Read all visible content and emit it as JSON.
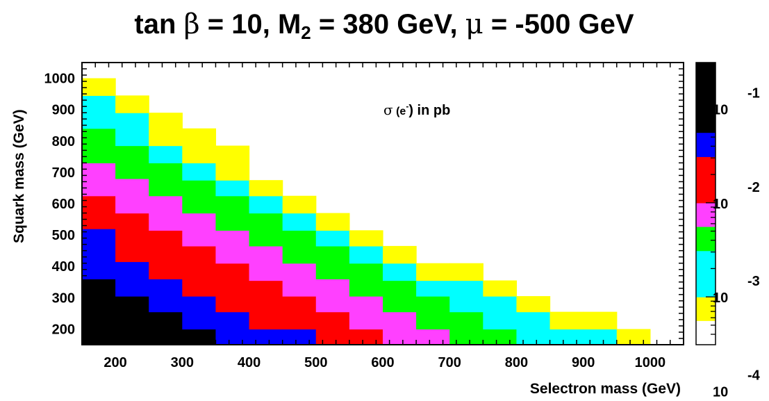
{
  "chart_data": {
    "type": "heatmap",
    "title": {
      "prefix": "tan ",
      "beta": "β",
      "mid1": " = 10, M",
      "sub": "2",
      "mid2": " = 380 GeV, ",
      "mu": "μ",
      "suffix": " = -500 GeV"
    },
    "xlabel": "Selectron mass (GeV)",
    "ylabel": "Squark mass (GeV)",
    "annotation": {
      "sigma": "σ",
      "open": " (e",
      "sup": "-",
      "close": ") in pb"
    },
    "xlim": [
      150,
      1050
    ],
    "ylim": [
      150,
      1050
    ],
    "xticks": [
      200,
      300,
      400,
      500,
      600,
      700,
      800,
      900,
      1000
    ],
    "yticks": [
      200,
      300,
      400,
      500,
      600,
      700,
      800,
      900,
      1000
    ],
    "x_edges": [
      150,
      200,
      250,
      300,
      350,
      400,
      450,
      500,
      550,
      600,
      650,
      700,
      750,
      800,
      850,
      900,
      950,
      1000
    ],
    "color_scale": {
      "scale": "log",
      "zmin": 0.00031,
      "zmax": 0.31,
      "bands": [
        {
          "color": "#ffffff",
          "from": 0.00031,
          "to": 0.00056
        },
        {
          "color": "#ffff00",
          "from": 0.00056,
          "to": 0.001
        },
        {
          "color": "#00ffff",
          "from": 0.001,
          "to": 0.0031
        },
        {
          "color": "#00ff00",
          "from": 0.0031,
          "to": 0.0056
        },
        {
          "color": "#ff40ff",
          "from": 0.0056,
          "to": 0.01
        },
        {
          "color": "#ff0000",
          "from": 0.01,
          "to": 0.031
        },
        {
          "color": "#0000ff",
          "from": 0.031,
          "to": 0.056
        },
        {
          "color": "#000000",
          "from": 0.056,
          "to": 0.31
        }
      ],
      "labels": [
        {
          "base": "10",
          "exp": "-1",
          "value": 0.1
        },
        {
          "base": "10",
          "exp": "-2",
          "value": 0.01
        },
        {
          "base": "10",
          "exp": "-3",
          "value": 0.001
        },
        {
          "base": "10",
          "exp": "-4",
          "value": 0.0001
        }
      ]
    },
    "columns": [
      {
        "x0": 150,
        "x1": 200,
        "bands": [
          [
            "#000000",
            150,
            360
          ],
          [
            "#0000ff",
            360,
            520
          ],
          [
            "#ff0000",
            520,
            625
          ],
          [
            "#ff40ff",
            625,
            730
          ],
          [
            "#00ff00",
            730,
            840
          ],
          [
            "#00ffff",
            840,
            945
          ],
          [
            "#ffff00",
            945,
            1000
          ]
        ]
      },
      {
        "x0": 200,
        "x1": 250,
        "bands": [
          [
            "#000000",
            150,
            305
          ],
          [
            "#0000ff",
            305,
            415
          ],
          [
            "#ff0000",
            415,
            570
          ],
          [
            "#ff40ff",
            570,
            680
          ],
          [
            "#00ff00",
            680,
            785
          ],
          [
            "#00ffff",
            785,
            890
          ],
          [
            "#ffff00",
            890,
            945
          ]
        ]
      },
      {
        "x0": 250,
        "x1": 300,
        "bands": [
          [
            "#000000",
            150,
            255
          ],
          [
            "#0000ff",
            255,
            360
          ],
          [
            "#ff0000",
            360,
            515
          ],
          [
            "#ff40ff",
            515,
            625
          ],
          [
            "#00ff00",
            625,
            730
          ],
          [
            "#00ffff",
            730,
            785
          ],
          [
            "#ffff00",
            785,
            890
          ]
        ]
      },
      {
        "x0": 300,
        "x1": 350,
        "bands": [
          [
            "#000000",
            150,
            200
          ],
          [
            "#0000ff",
            200,
            305
          ],
          [
            "#ff0000",
            305,
            465
          ],
          [
            "#ff40ff",
            465,
            570
          ],
          [
            "#00ff00",
            570,
            675
          ],
          [
            "#00ffff",
            675,
            730
          ],
          [
            "#ffff00",
            730,
            840
          ]
        ]
      },
      {
        "x0": 350,
        "x1": 400,
        "bands": [
          [
            "#0000ff",
            150,
            255
          ],
          [
            "#ff0000",
            255,
            410
          ],
          [
            "#ff40ff",
            410,
            515
          ],
          [
            "#00ff00",
            515,
            625
          ],
          [
            "#00ffff",
            625,
            675
          ],
          [
            "#ffff00",
            675,
            785
          ]
        ]
      },
      {
        "x0": 400,
        "x1": 450,
        "bands": [
          [
            "#0000ff",
            150,
            200
          ],
          [
            "#ff0000",
            200,
            355
          ],
          [
            "#ff40ff",
            355,
            465
          ],
          [
            "#00ff00",
            465,
            570
          ],
          [
            "#00ffff",
            570,
            625
          ],
          [
            "#ffff00",
            625,
            675
          ]
        ]
      },
      {
        "x0": 450,
        "x1": 500,
        "bands": [
          [
            "#0000ff",
            150,
            200
          ],
          [
            "#ff0000",
            200,
            305
          ],
          [
            "#ff40ff",
            305,
            410
          ],
          [
            "#00ff00",
            410,
            515
          ],
          [
            "#00ffff",
            515,
            570
          ],
          [
            "#ffff00",
            570,
            625
          ]
        ]
      },
      {
        "x0": 500,
        "x1": 550,
        "bands": [
          [
            "#ff0000",
            150,
            255
          ],
          [
            "#ff40ff",
            255,
            360
          ],
          [
            "#00ff00",
            360,
            465
          ],
          [
            "#00ffff",
            465,
            515
          ],
          [
            "#ffff00",
            515,
            570
          ]
        ]
      },
      {
        "x0": 550,
        "x1": 600,
        "bands": [
          [
            "#ff0000",
            150,
            200
          ],
          [
            "#ff40ff",
            200,
            305
          ],
          [
            "#00ff00",
            305,
            410
          ],
          [
            "#00ffff",
            410,
            465
          ],
          [
            "#ffff00",
            465,
            515
          ]
        ]
      },
      {
        "x0": 600,
        "x1": 650,
        "bands": [
          [
            "#ff40ff",
            150,
            255
          ],
          [
            "#00ff00",
            255,
            355
          ],
          [
            "#00ffff",
            355,
            410
          ],
          [
            "#ffff00",
            410,
            465
          ]
        ]
      },
      {
        "x0": 650,
        "x1": 700,
        "bands": [
          [
            "#ff40ff",
            150,
            200
          ],
          [
            "#00ff00",
            200,
            305
          ],
          [
            "#00ffff",
            305,
            355
          ],
          [
            "#ffff00",
            355,
            410
          ]
        ]
      },
      {
        "x0": 700,
        "x1": 750,
        "bands": [
          [
            "#00ff00",
            150,
            255
          ],
          [
            "#00ffff",
            255,
            355
          ],
          [
            "#ffff00",
            355,
            410
          ]
        ]
      },
      {
        "x0": 750,
        "x1": 800,
        "bands": [
          [
            "#00ff00",
            150,
            200
          ],
          [
            "#00ffff",
            200,
            305
          ],
          [
            "#ffff00",
            305,
            355
          ]
        ]
      },
      {
        "x0": 800,
        "x1": 850,
        "bands": [
          [
            "#00ffff",
            150,
            255
          ],
          [
            "#ffff00",
            255,
            305
          ]
        ]
      },
      {
        "x0": 850,
        "x1": 900,
        "bands": [
          [
            "#00ffff",
            150,
            200
          ],
          [
            "#ffff00",
            200,
            255
          ]
        ]
      },
      {
        "x0": 900,
        "x1": 950,
        "bands": [
          [
            "#00ffff",
            150,
            200
          ],
          [
            "#ffff00",
            200,
            255
          ]
        ]
      },
      {
        "x0": 950,
        "x1": 1000,
        "bands": [
          [
            "#ffff00",
            150,
            200
          ]
        ]
      }
    ],
    "grid": false,
    "legend": "colorbar-right"
  }
}
